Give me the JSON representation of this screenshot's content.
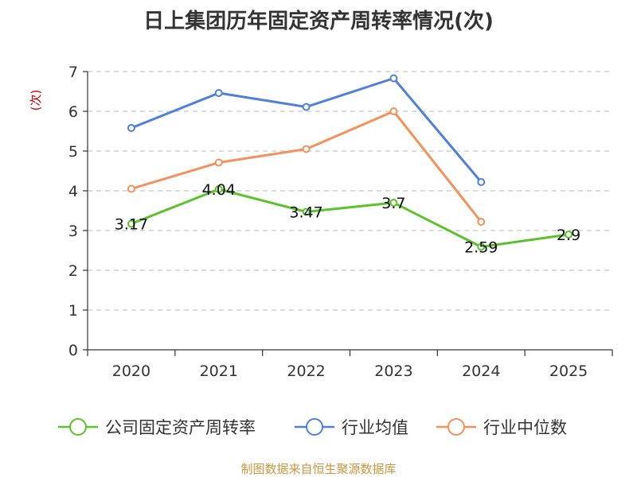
{
  "chart_data": {
    "type": "line",
    "title": "日上集团历年固定资产周转率情况(次)",
    "ylabel": "(次)",
    "xlabel": "",
    "categories": [
      "2020",
      "2021",
      "2022",
      "2023",
      "2024",
      "2025"
    ],
    "ylim": [
      0,
      7
    ],
    "yticks": [
      0,
      1,
      2,
      3,
      4,
      5,
      6,
      7
    ],
    "grid": "horizontal-dashed",
    "legend_position": "bottom",
    "series": [
      {
        "name": "公司固定资产周转率",
        "color": "#5cc22c",
        "values": [
          3.17,
          4.04,
          3.47,
          3.7,
          2.59,
          2.9
        ],
        "labels": [
          "3.17",
          "4.04",
          "3.47",
          "3.7",
          "2.59",
          "2.9"
        ]
      },
      {
        "name": "行业均值",
        "color": "#4f7fdc",
        "values": [
          5.58,
          6.46,
          6.11,
          6.83,
          4.22,
          null
        ]
      },
      {
        "name": "行业中位数",
        "color": "#f5905a",
        "values": [
          4.05,
          4.71,
          5.05,
          6.0,
          3.22,
          null
        ]
      }
    ],
    "source": "制图数据来自恒生聚源数据库"
  }
}
